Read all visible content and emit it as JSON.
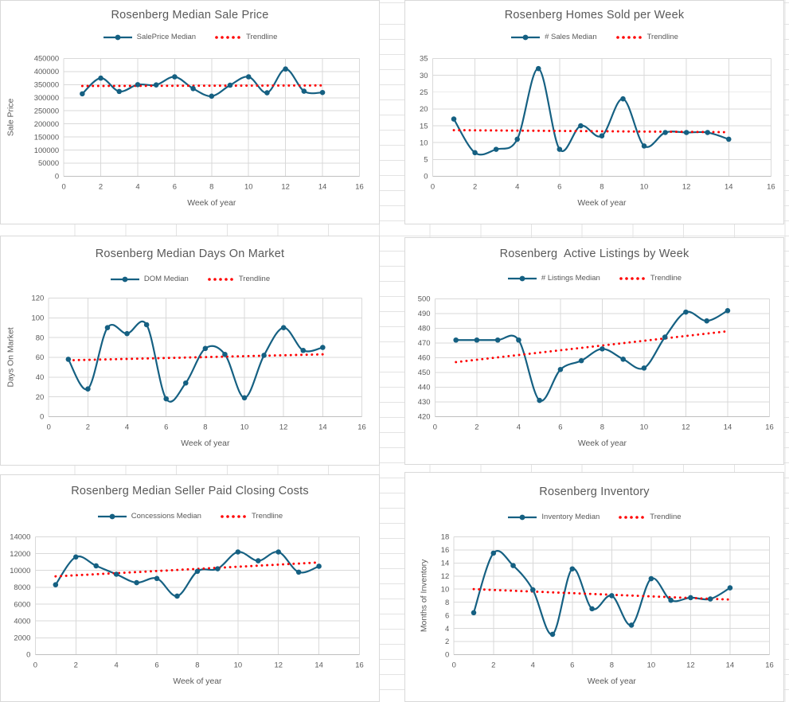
{
  "colors": {
    "accent": "#156082",
    "trendline": "#FF0000",
    "title_text": "#595959",
    "axis_text": "#595959",
    "plot_gridline": "#D9D9D9",
    "axis_line": "#BFBFBF",
    "sheet_gridline": "#E3E3E3",
    "chart_border": "#D9D9D9"
  },
  "chart_data": [
    {
      "type": "line",
      "title": "Rosenberg Median Sale Price",
      "xlabel": "Week of year",
      "ylabel": "Sale Price",
      "xlim": [
        0,
        16
      ],
      "xstep": 2,
      "ylim": [
        0,
        450000
      ],
      "ystep": 50000,
      "grid": true,
      "legend_position": "top",
      "x": [
        1,
        2,
        3,
        4,
        5,
        6,
        7,
        8,
        9,
        10,
        11,
        12,
        13,
        14
      ],
      "series": [
        {
          "name": "SalePrice Median",
          "style": "solid-markers",
          "values": [
            315000,
            375000,
            324000,
            350000,
            349000,
            380000,
            335000,
            306000,
            348000,
            380000,
            319000,
            410000,
            325000,
            320000
          ]
        },
        {
          "name": "Trendline",
          "style": "dotted",
          "x": [
            1,
            14
          ],
          "values": [
            345000,
            347000
          ]
        }
      ]
    },
    {
      "type": "line",
      "title": "Rosenberg Homes Sold per Week",
      "xlabel": "Week of year",
      "ylabel": "",
      "xlim": [
        0,
        16
      ],
      "xstep": 2,
      "ylim": [
        0,
        35
      ],
      "ystep": 5,
      "grid": true,
      "legend_position": "top",
      "x": [
        1,
        2,
        3,
        4,
        5,
        6,
        7,
        8,
        9,
        10,
        11,
        12,
        13,
        14
      ],
      "series": [
        {
          "name": "# Sales Median",
          "style": "solid-markers",
          "values": [
            17,
            7,
            8,
            11,
            32,
            8,
            15,
            12,
            23,
            9,
            13,
            13,
            13,
            11
          ]
        },
        {
          "name": "Trendline",
          "style": "dotted",
          "x": [
            1,
            14
          ],
          "values": [
            13.7,
            13.1
          ]
        }
      ]
    },
    {
      "type": "line",
      "title": "Rosenberg Median Days On Market",
      "xlabel": "Week of year",
      "ylabel": "Days On Market",
      "xlim": [
        0,
        16
      ],
      "xstep": 2,
      "ylim": [
        0,
        120
      ],
      "ystep": 20,
      "grid": true,
      "legend_position": "top",
      "x": [
        1,
        2,
        3,
        4,
        5,
        6,
        7,
        8,
        9,
        10,
        11,
        12,
        13,
        14
      ],
      "series": [
        {
          "name": "DOM Median",
          "style": "solid-markers",
          "values": [
            58,
            28,
            90,
            84,
            93,
            18,
            34,
            69,
            63,
            19,
            62,
            90,
            67,
            70
          ]
        },
        {
          "name": "Trendline",
          "style": "dotted",
          "x": [
            1,
            14
          ],
          "values": [
            57,
            63
          ]
        }
      ]
    },
    {
      "type": "line",
      "title": "Rosenberg  Active Listings by Week",
      "xlabel": "Week of year",
      "ylabel": "",
      "xlim": [
        0,
        16
      ],
      "xstep": 2,
      "ylim": [
        420,
        500
      ],
      "ystep": 10,
      "grid": true,
      "legend_position": "top",
      "x": [
        1,
        2,
        3,
        4,
        5,
        6,
        7,
        8,
        9,
        10,
        11,
        12,
        13,
        14
      ],
      "series": [
        {
          "name": "# Listings Median",
          "style": "solid-markers",
          "values": [
            472,
            472,
            472,
            472,
            431,
            452,
            458,
            466,
            459,
            453,
            474,
            491,
            485,
            492
          ]
        },
        {
          "name": "Trendline",
          "style": "dotted",
          "x": [
            1,
            14
          ],
          "values": [
            457,
            478
          ]
        }
      ]
    },
    {
      "type": "line",
      "title": "Rosenberg Median Seller Paid Closing Costs",
      "xlabel": "Week of year",
      "ylabel": "",
      "xlim": [
        0,
        16
      ],
      "xstep": 2,
      "ylim": [
        0,
        14000
      ],
      "ystep": 2000,
      "grid": true,
      "legend_position": "top",
      "x": [
        1,
        2,
        3,
        4,
        5,
        6,
        7,
        8,
        9,
        10,
        11,
        12,
        13,
        14
      ],
      "series": [
        {
          "name": "Concessions Median",
          "style": "solid-markers",
          "values": [
            8300,
            11600,
            10550,
            9550,
            8550,
            9050,
            6950,
            9900,
            10200,
            12200,
            11150,
            12200,
            9800,
            10500
          ]
        },
        {
          "name": "Trendline",
          "style": "dotted",
          "x": [
            1,
            14
          ],
          "values": [
            9300,
            10950
          ]
        }
      ]
    },
    {
      "type": "line",
      "title": "Rosenberg Inventory",
      "xlabel": "Week of year",
      "ylabel": "Months of Inventory",
      "xlim": [
        0,
        16
      ],
      "xstep": 2,
      "ylim": [
        0,
        18
      ],
      "ystep": 2,
      "grid": true,
      "legend_position": "top",
      "x": [
        1,
        2,
        3,
        4,
        5,
        6,
        7,
        8,
        9,
        10,
        11,
        12,
        13,
        14
      ],
      "series": [
        {
          "name": "Inventory Median",
          "style": "solid-markers",
          "values": [
            6.4,
            15.5,
            13.6,
            9.9,
            3.1,
            13.1,
            7.0,
            9.0,
            4.5,
            11.6,
            8.3,
            8.7,
            8.5,
            10.2
          ]
        },
        {
          "name": "Trendline",
          "style": "dotted",
          "x": [
            1,
            14
          ],
          "values": [
            10.0,
            8.4
          ]
        }
      ]
    }
  ]
}
